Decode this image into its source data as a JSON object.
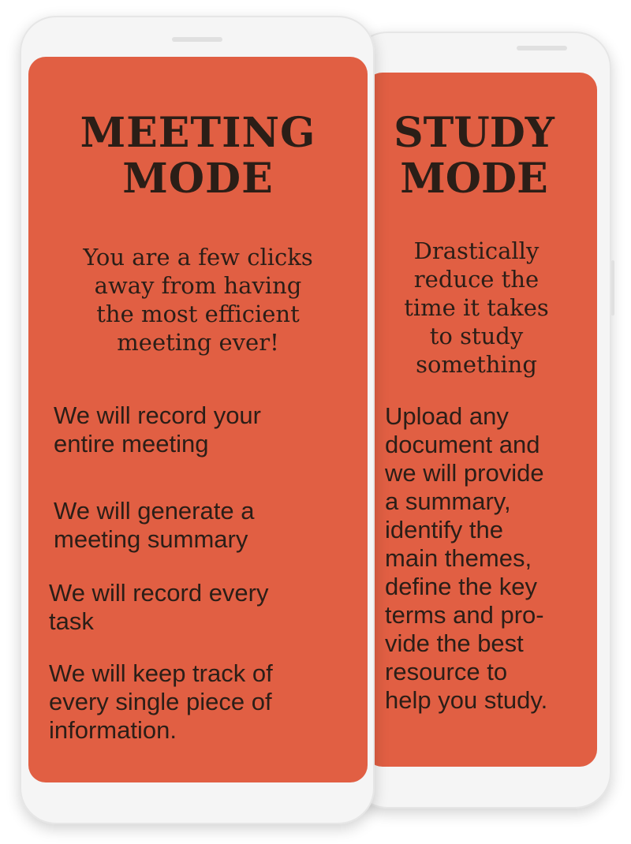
{
  "meeting_mode": {
    "title_line1": "MEETING",
    "title_line2": "MODE",
    "subtitle_line1": "You are a few clicks",
    "subtitle_line2": "away from having",
    "subtitle_line3": "the most efficient",
    "subtitle_line4": "meeting ever!",
    "items": [
      {
        "line1": "We will record your",
        "line2": "entire meeting"
      },
      {
        "line1": "We will generate a",
        "line2": "meeting summary"
      },
      {
        "line1": "We will record every",
        "line2": "task"
      },
      {
        "line1": "We will keep track of",
        "line2": "every single piece of",
        "line3": "information."
      }
    ]
  },
  "study_mode": {
    "title_line1": "STUDY",
    "title_line2": "MODE",
    "subtitle_lines": [
      "Drastically",
      "reduce the",
      "time it takes",
      "to study",
      "something"
    ],
    "body_lines": [
      "Upload any",
      "document and",
      "we will provide",
      "a summary,",
      "identify the",
      "main themes,",
      "define the key",
      "terms and pro-",
      "vide the best",
      "resource to",
      "help you study."
    ]
  },
  "colors": {
    "screen": "#e15f43",
    "text": "#2b1e17",
    "phone_body": "#f5f5f5"
  }
}
